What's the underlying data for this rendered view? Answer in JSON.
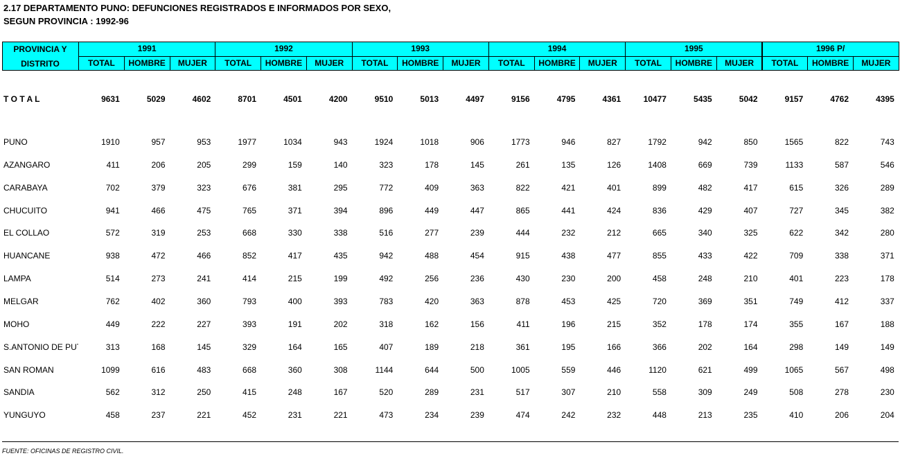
{
  "title": [
    "2.17 DEPARTAMENTO PUNO: DEFUNCIONES REGISTRADOS E INFORMADOS POR SEXO,",
    "SEGUN PROVINCIA : 1992-96"
  ],
  "table": {
    "first_header": [
      "PROVINCIA Y",
      "DISTRITO"
    ],
    "groups": [
      {
        "year": "1991",
        "columns": [
          "TOTAL",
          "HOMBRE",
          "MUJER"
        ]
      },
      {
        "year": "1992",
        "columns": [
          "TOTAL",
          "HOMBRE",
          "MUJER"
        ]
      },
      {
        "year": "1993",
        "columns": [
          "TOTAL",
          "HOMBRE",
          "MUJER"
        ]
      },
      {
        "year": "1994",
        "columns": [
          "TOTAL",
          "HOMBRE",
          "MUJER"
        ]
      },
      {
        "year": "1995",
        "columns": [
          "TOTAL",
          "HOMBRE",
          "MUJER"
        ]
      },
      {
        "year": "1996 P/",
        "columns": [
          "TOTAL",
          "HOMBRE",
          "MUJER"
        ]
      }
    ],
    "total": {
      "label": "T O T A L",
      "values": [
        9631,
        5029,
        4602,
        8701,
        4501,
        4200,
        9510,
        5013,
        4497,
        9156,
        4795,
        4361,
        10477,
        5435,
        5042,
        9157,
        4762,
        4395
      ]
    },
    "rows": [
      {
        "label": "PUNO",
        "values": [
          1910,
          957,
          953,
          1977,
          1034,
          943,
          1924,
          1018,
          906,
          1773,
          946,
          827,
          1792,
          942,
          850,
          1565,
          822,
          743
        ]
      },
      {
        "label": "AZANGARO",
        "values": [
          411,
          206,
          205,
          299,
          159,
          140,
          323,
          178,
          145,
          261,
          135,
          126,
          1408,
          669,
          739,
          1133,
          587,
          546
        ]
      },
      {
        "label": "CARABAYA",
        "values": [
          702,
          379,
          323,
          676,
          381,
          295,
          772,
          409,
          363,
          822,
          421,
          401,
          899,
          482,
          417,
          615,
          326,
          289
        ]
      },
      {
        "label": "CHUCUITO",
        "values": [
          941,
          466,
          475,
          765,
          371,
          394,
          896,
          449,
          447,
          865,
          441,
          424,
          836,
          429,
          407,
          727,
          345,
          382
        ]
      },
      {
        "label": "EL COLLAO",
        "values": [
          572,
          319,
          253,
          668,
          330,
          338,
          516,
          277,
          239,
          444,
          232,
          212,
          665,
          340,
          325,
          622,
          342,
          280
        ]
      },
      {
        "label": "HUANCANE",
        "values": [
          938,
          472,
          466,
          852,
          417,
          435,
          942,
          488,
          454,
          915,
          438,
          477,
          855,
          433,
          422,
          709,
          338,
          371
        ]
      },
      {
        "label": "LAMPA",
        "values": [
          514,
          273,
          241,
          414,
          215,
          199,
          492,
          256,
          236,
          430,
          230,
          200,
          458,
          248,
          210,
          401,
          223,
          178
        ]
      },
      {
        "label": "MELGAR",
        "values": [
          762,
          402,
          360,
          793,
          400,
          393,
          783,
          420,
          363,
          878,
          453,
          425,
          720,
          369,
          351,
          749,
          412,
          337
        ]
      },
      {
        "label": "MOHO",
        "values": [
          449,
          222,
          227,
          393,
          191,
          202,
          318,
          162,
          156,
          411,
          196,
          215,
          352,
          178,
          174,
          355,
          167,
          188
        ]
      },
      {
        "label": "S.ANTONIO DE PUT",
        "values": [
          313,
          168,
          145,
          329,
          164,
          165,
          407,
          189,
          218,
          361,
          195,
          166,
          366,
          202,
          164,
          298,
          149,
          149
        ]
      },
      {
        "label": "SAN ROMAN",
        "values": [
          1099,
          616,
          483,
          668,
          360,
          308,
          1144,
          644,
          500,
          1005,
          559,
          446,
          1120,
          621,
          499,
          1065,
          567,
          498
        ]
      },
      {
        "label": "SANDIA",
        "values": [
          562,
          312,
          250,
          415,
          248,
          167,
          520,
          289,
          231,
          517,
          307,
          210,
          558,
          309,
          249,
          508,
          278,
          230
        ]
      },
      {
        "label": "YUNGUYO",
        "values": [
          458,
          237,
          221,
          452,
          231,
          221,
          473,
          234,
          239,
          474,
          242,
          232,
          448,
          213,
          235,
          410,
          206,
          204
        ]
      }
    ]
  },
  "footer": "FUENTE: OFICINAS DE REGISTRO CIVIL."
}
